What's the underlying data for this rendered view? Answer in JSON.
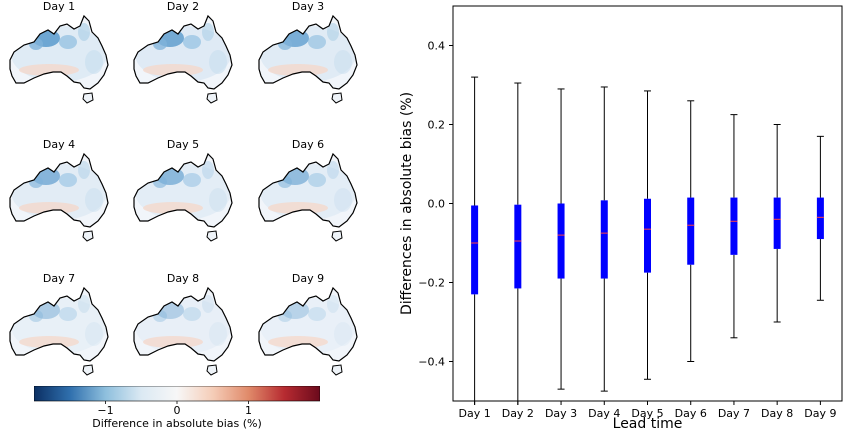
{
  "maps": {
    "panels": [
      {
        "title": "Day 1",
        "intensity": 1.0
      },
      {
        "title": "Day 2",
        "intensity": 0.95
      },
      {
        "title": "Day 3",
        "intensity": 0.9
      },
      {
        "title": "Day 4",
        "intensity": 0.8
      },
      {
        "title": "Day 5",
        "intensity": 0.75
      },
      {
        "title": "Day 6",
        "intensity": 0.7
      },
      {
        "title": "Day 7",
        "intensity": 0.5
      },
      {
        "title": "Day 8",
        "intensity": 0.45
      },
      {
        "title": "Day 9",
        "intensity": 0.4
      }
    ],
    "colorbar": {
      "label": "Difference in absolute bias (%)",
      "ticks": [
        "−1",
        "0",
        "1"
      ],
      "tick_values": [
        -1,
        0,
        1
      ],
      "range": [
        -2,
        2
      ],
      "colors": [
        "#0b2f63",
        "#2f6fad",
        "#8ebfdd",
        "#dbe9f3",
        "#f7f7f7",
        "#f5cdb8",
        "#e08a6a",
        "#b72b31",
        "#6b0a1c"
      ]
    }
  },
  "chart_data": {
    "type": "box",
    "categories": [
      "Day 1",
      "Day 2",
      "Day 3",
      "Day 4",
      "Day 5",
      "Day 6",
      "Day 7",
      "Day 8",
      "Day 9"
    ],
    "xlabel": "Lead time",
    "ylabel": "Differences in absolute bias (%)",
    "ylim": [
      -0.5,
      0.5
    ],
    "yticks": [
      -0.4,
      -0.2,
      0.0,
      0.2,
      0.4
    ],
    "ytick_labels": [
      "−0.4",
      "−0.2",
      "0.0",
      "0.2",
      "0.4"
    ],
    "series": [
      {
        "whisker_low": -0.51,
        "q1": -0.23,
        "median": -0.1,
        "q3": -0.005,
        "whisker_high": 0.32
      },
      {
        "whisker_low": -0.51,
        "q1": -0.215,
        "median": -0.095,
        "q3": -0.003,
        "whisker_high": 0.305
      },
      {
        "whisker_low": -0.47,
        "q1": -0.19,
        "median": -0.08,
        "q3": 0.0,
        "whisker_high": 0.29
      },
      {
        "whisker_low": -0.475,
        "q1": -0.19,
        "median": -0.075,
        "q3": 0.008,
        "whisker_high": 0.295
      },
      {
        "whisker_low": -0.445,
        "q1": -0.175,
        "median": -0.065,
        "q3": 0.012,
        "whisker_high": 0.285
      },
      {
        "whisker_low": -0.4,
        "q1": -0.155,
        "median": -0.055,
        "q3": 0.015,
        "whisker_high": 0.26
      },
      {
        "whisker_low": -0.34,
        "q1": -0.13,
        "median": -0.045,
        "q3": 0.015,
        "whisker_high": 0.225
      },
      {
        "whisker_low": -0.3,
        "q1": -0.115,
        "median": -0.04,
        "q3": 0.015,
        "whisker_high": 0.2
      },
      {
        "whisker_low": -0.245,
        "q1": -0.09,
        "median": -0.035,
        "q3": 0.015,
        "whisker_high": 0.17
      }
    ],
    "box_color": "#0000ff",
    "median_color": "#ff4040",
    "grid": false
  }
}
